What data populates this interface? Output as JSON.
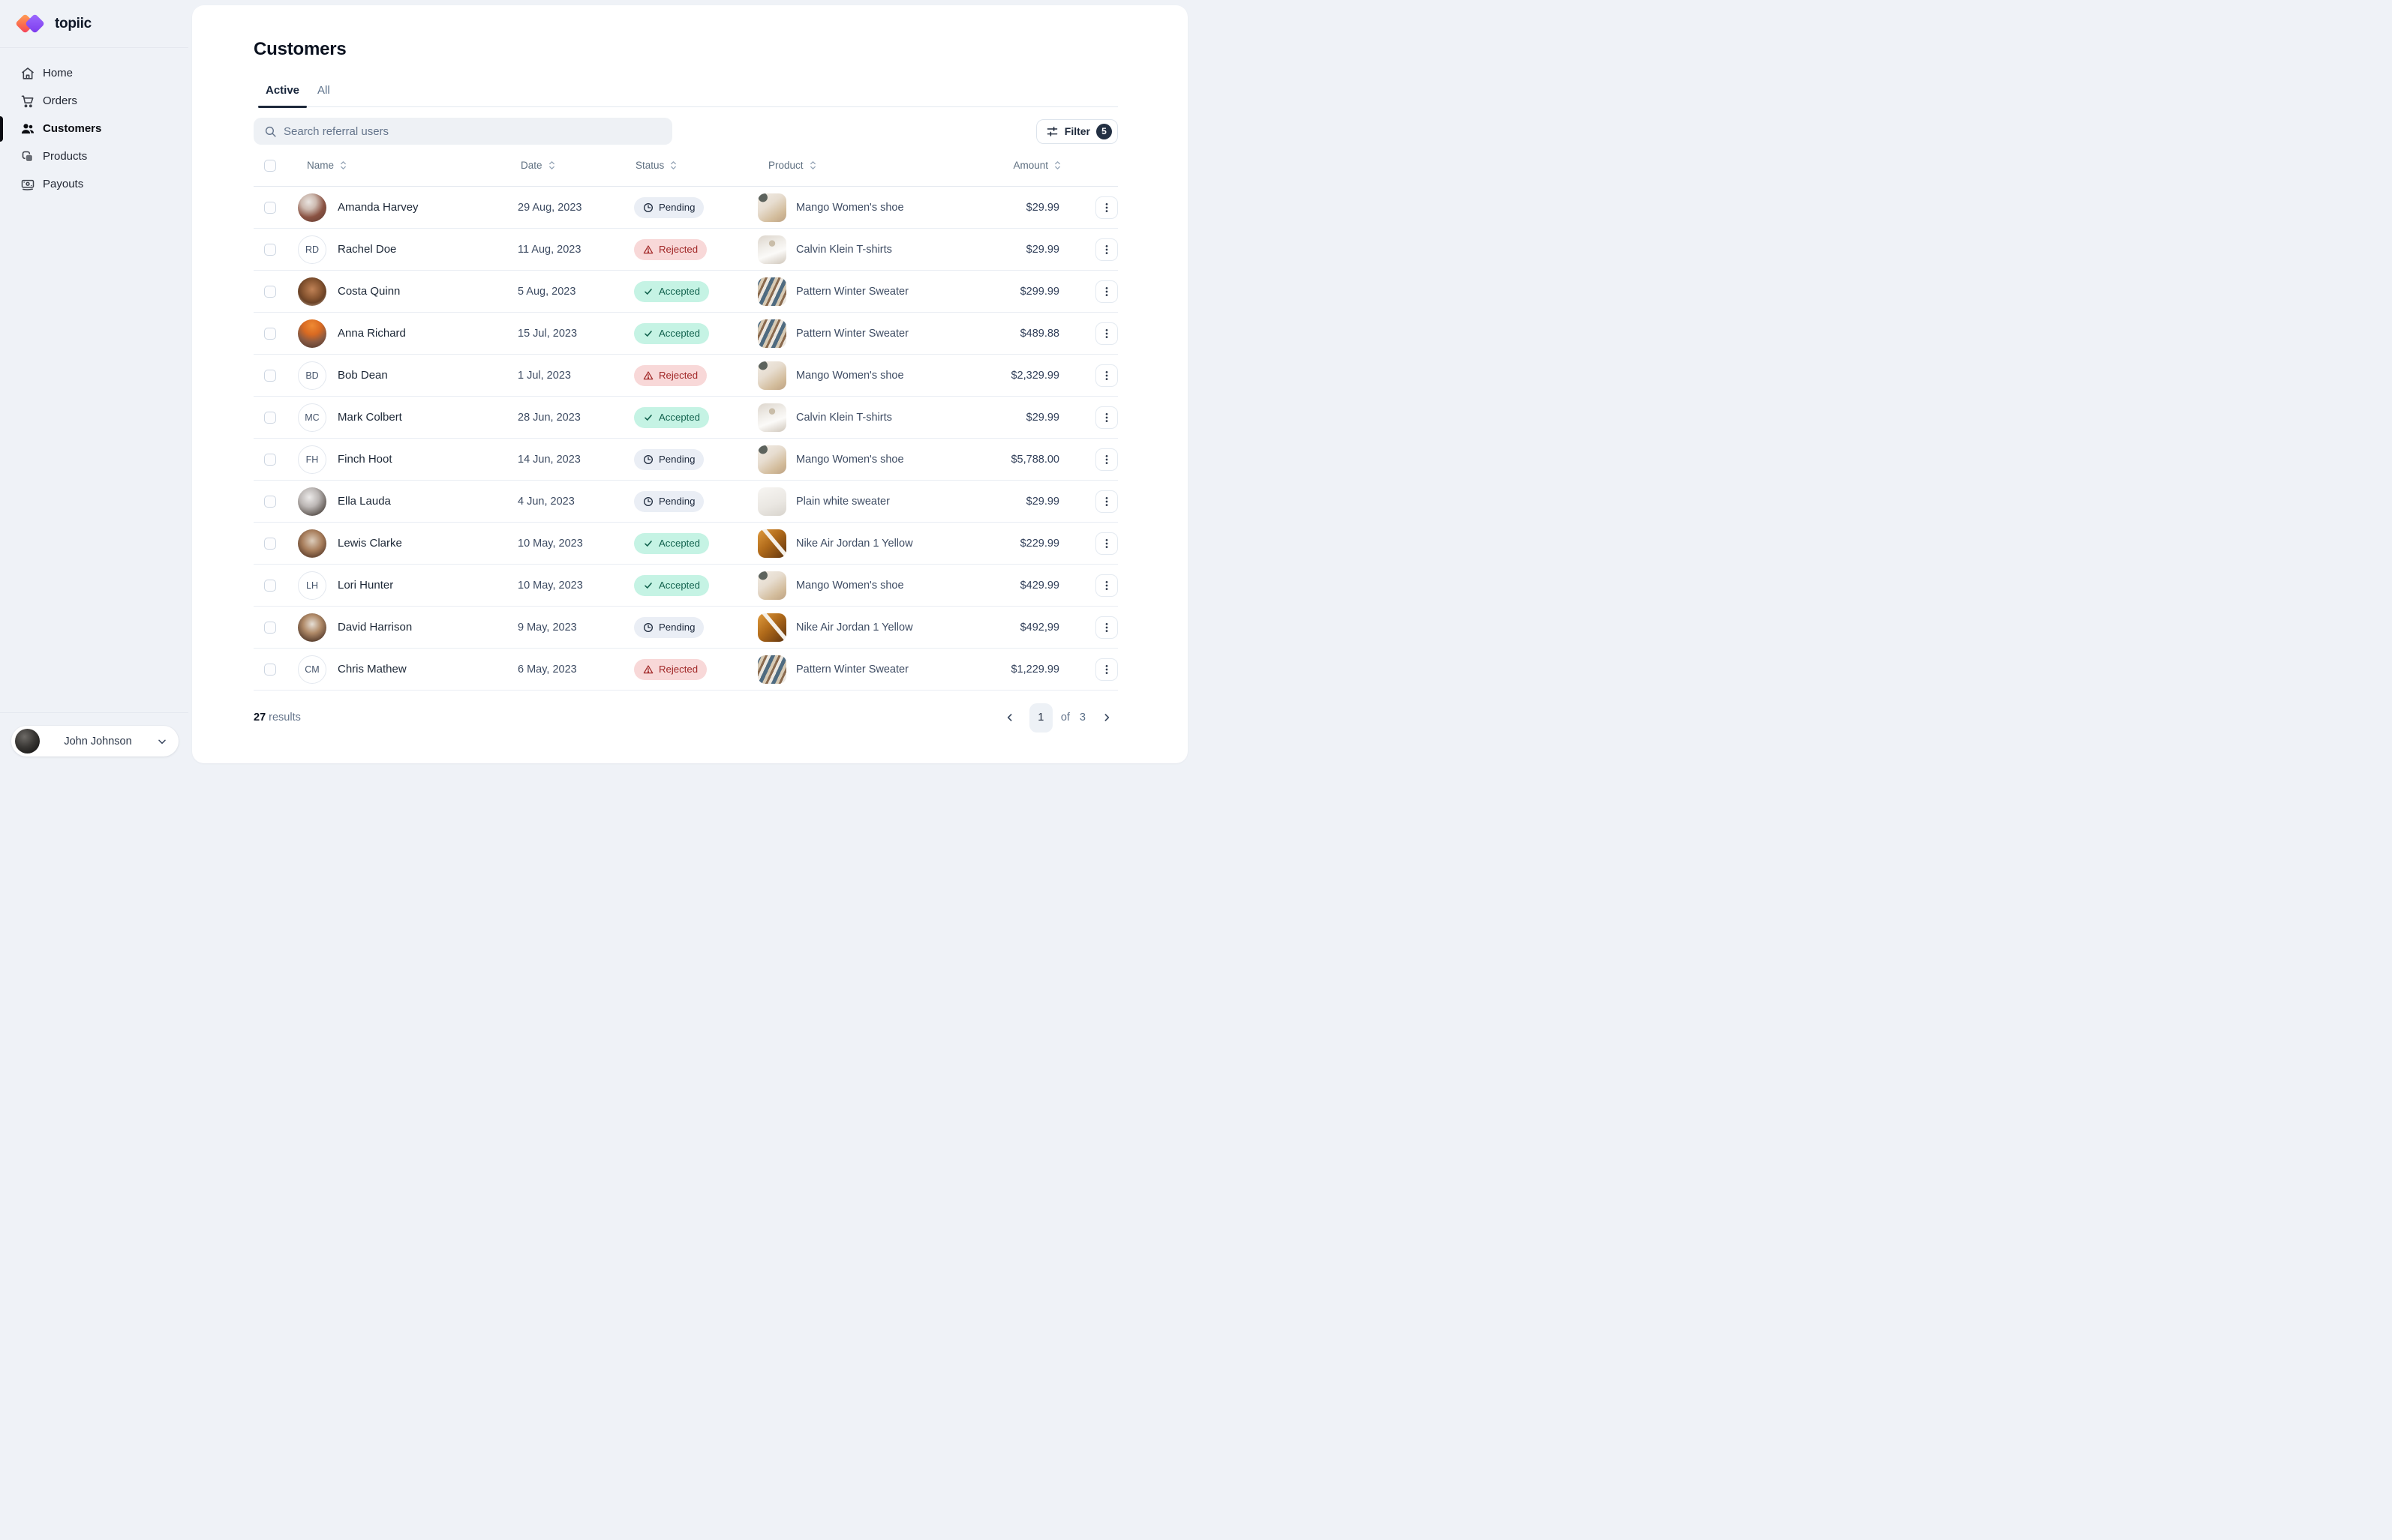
{
  "brand": {
    "name": "topiic"
  },
  "sidebar": {
    "items": [
      {
        "id": "home",
        "label": "Home"
      },
      {
        "id": "orders",
        "label": "Orders"
      },
      {
        "id": "customers",
        "label": "Customers"
      },
      {
        "id": "products",
        "label": "Products"
      },
      {
        "id": "payouts",
        "label": "Payouts"
      }
    ],
    "active_item": "customers",
    "user": {
      "name": "John Johnson"
    }
  },
  "header": {
    "title": "Customers",
    "tabs": [
      {
        "id": "active",
        "label": "Active"
      },
      {
        "id": "all",
        "label": "All"
      }
    ],
    "active_tab": "active"
  },
  "toolbar": {
    "search_placeholder": "Search referral users",
    "filter_label": "Filter",
    "filter_count": "5"
  },
  "table": {
    "columns": [
      {
        "id": "name",
        "label": "Name"
      },
      {
        "id": "date",
        "label": "Date"
      },
      {
        "id": "status",
        "label": "Status"
      },
      {
        "id": "product",
        "label": "Product"
      },
      {
        "id": "amount",
        "label": "Amount"
      }
    ],
    "rows": [
      {
        "name": "Amanda Harvey",
        "avatar": {
          "type": "photo",
          "photo": "amanda"
        },
        "date": "29 Aug, 2023",
        "status": {
          "key": "pending",
          "label": "Pending"
        },
        "product": {
          "key": "mango",
          "name": "Mango Women's shoe"
        },
        "amount": "$29.99"
      },
      {
        "name": "Rachel Doe",
        "avatar": {
          "type": "initials",
          "initials": "RD"
        },
        "date": "11 Aug, 2023",
        "status": {
          "key": "rejected",
          "label": "Rejected"
        },
        "product": {
          "key": "calvin",
          "name": "Calvin Klein T-shirts"
        },
        "amount": "$29.99"
      },
      {
        "name": "Costa Quinn",
        "avatar": {
          "type": "photo",
          "photo": "costa"
        },
        "date": "5 Aug, 2023",
        "status": {
          "key": "accepted",
          "label": "Accepted"
        },
        "product": {
          "key": "sweater_pattern",
          "name": "Pattern Winter Sweater"
        },
        "amount": "$299.99"
      },
      {
        "name": "Anna Richard",
        "avatar": {
          "type": "photo",
          "photo": "anna"
        },
        "date": "15 Jul, 2023",
        "status": {
          "key": "accepted",
          "label": "Accepted"
        },
        "product": {
          "key": "sweater_pattern",
          "name": "Pattern Winter Sweater"
        },
        "amount": "$489.88"
      },
      {
        "name": "Bob Dean",
        "avatar": {
          "type": "initials",
          "initials": "BD"
        },
        "date": "1 Jul, 2023",
        "status": {
          "key": "rejected",
          "label": "Rejected"
        },
        "product": {
          "key": "mango",
          "name": "Mango Women's shoe"
        },
        "amount": "$2,329.99"
      },
      {
        "name": "Mark Colbert",
        "avatar": {
          "type": "initials",
          "initials": "MC"
        },
        "date": "28 Jun, 2023",
        "status": {
          "key": "accepted",
          "label": "Accepted"
        },
        "product": {
          "key": "calvin",
          "name": "Calvin Klein T-shirts"
        },
        "amount": "$29.99"
      },
      {
        "name": "Finch Hoot",
        "avatar": {
          "type": "initials",
          "initials": "FH"
        },
        "date": "14 Jun, 2023",
        "status": {
          "key": "pending",
          "label": "Pending"
        },
        "product": {
          "key": "mango",
          "name": "Mango Women's shoe"
        },
        "amount": "$5,788.00"
      },
      {
        "name": "Ella Lauda",
        "avatar": {
          "type": "photo",
          "photo": "ella"
        },
        "date": "4 Jun, 2023",
        "status": {
          "key": "pending",
          "label": "Pending"
        },
        "product": {
          "key": "sweater_white",
          "name": "Plain white sweater"
        },
        "amount": "$29.99"
      },
      {
        "name": "Lewis Clarke",
        "avatar": {
          "type": "photo",
          "photo": "lewis"
        },
        "date": "10 May, 2023",
        "status": {
          "key": "accepted",
          "label": "Accepted"
        },
        "product": {
          "key": "nike",
          "name": "Nike Air Jordan 1 Yellow"
        },
        "amount": "$229.99"
      },
      {
        "name": "Lori Hunter",
        "avatar": {
          "type": "initials",
          "initials": "LH"
        },
        "date": "10 May, 2023",
        "status": {
          "key": "accepted",
          "label": "Accepted"
        },
        "product": {
          "key": "mango",
          "name": "Mango Women's shoe"
        },
        "amount": "$429.99"
      },
      {
        "name": "David Harrison",
        "avatar": {
          "type": "photo",
          "photo": "david"
        },
        "date": "9 May, 2023",
        "status": {
          "key": "pending",
          "label": "Pending"
        },
        "product": {
          "key": "nike",
          "name": "Nike Air Jordan 1 Yellow"
        },
        "amount": "$492,99"
      },
      {
        "name": "Chris Mathew",
        "avatar": {
          "type": "initials",
          "initials": "CM"
        },
        "date": "6 May, 2023",
        "status": {
          "key": "rejected",
          "label": "Rejected"
        },
        "product": {
          "key": "sweater_pattern",
          "name": "Pattern Winter Sweater"
        },
        "amount": "$1,229.99"
      }
    ]
  },
  "footer": {
    "results_count": "27",
    "results_label": "results",
    "pagination": {
      "current_page": "1",
      "of_label": "of",
      "total_pages": "3"
    }
  },
  "theme": {
    "brand_gradient_orange": "#fb6d4e",
    "brand_purple": "#7c3aed",
    "accent_navy": "#1e293b",
    "status_pending_bg": "#eaeef5",
    "status_pending_text": "#1f2b3e",
    "status_accepted_bg": "#c5f3e4",
    "status_accepted_text": "#156450",
    "status_rejected_bg": "#f8d8d8",
    "status_rejected_text": "#a12727",
    "page_bg": "#eff2f7",
    "card_bg": "#ffffff"
  }
}
